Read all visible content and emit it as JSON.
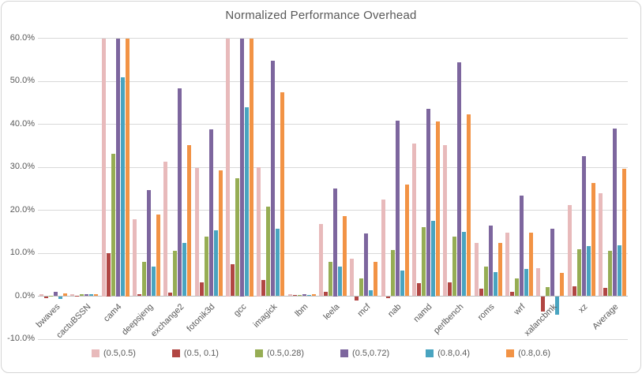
{
  "window": {
    "background": "#FFFFFF",
    "frame_border": "#D4D4D4"
  },
  "colors": {
    "gridline": "#D9D9D9",
    "zero_axis": "#BFBFBF",
    "text": "#595959"
  },
  "chart_data": {
    "type": "bar",
    "title": "Normalized Performance Overhead",
    "categories": [
      "bwaves",
      "cactuBSSN",
      "cam4",
      "deepsjeng",
      "exchange2",
      "fotonik3d",
      "gcc",
      "imagick",
      "lbm",
      "leela",
      "mcf",
      "nab",
      "namd",
      "perlbench",
      "roms",
      "wrf",
      "xalancbmk",
      "xz",
      "Average"
    ],
    "series": [
      {
        "name": "(0.5,0.5)",
        "color": "#E8BABB",
        "values": [
          0.5,
          0.4,
          60.0,
          17.8,
          31.3,
          29.8,
          60.0,
          30.0,
          0.4,
          16.8,
          8.8,
          22.5,
          35.5,
          35.2,
          12.4,
          14.7,
          6.6,
          21.2,
          24.0
        ]
      },
      {
        "name": "(0.5, 0.1)",
        "color": "#B14643",
        "values": [
          -0.5,
          0.1,
          10.0,
          0.5,
          0.8,
          3.2,
          7.4,
          3.8,
          0.3,
          1.0,
          -1.1,
          -0.5,
          3.1,
          3.3,
          1.7,
          1.1,
          -3.6,
          2.3,
          1.9
        ]
      },
      {
        "name": "(0.5,0.28)",
        "color": "#96AD54",
        "values": [
          0.1,
          0.4,
          33.1,
          7.9,
          10.5,
          13.9,
          27.4,
          20.9,
          0.3,
          7.9,
          4.1,
          10.7,
          16.0,
          13.8,
          6.8,
          4.2,
          2.1,
          10.9,
          10.6
        ]
      },
      {
        "name": "(0.5,0.72)",
        "color": "#7D669E",
        "values": [
          1.0,
          0.5,
          60.0,
          24.7,
          48.3,
          38.8,
          60.0,
          54.7,
          0.4,
          25.0,
          14.6,
          40.8,
          43.5,
          54.4,
          16.4,
          23.4,
          15.7,
          32.6,
          39.0
        ]
      },
      {
        "name": "(0.8,0.4)",
        "color": "#49A4C0",
        "values": [
          -0.6,
          0.5,
          51.0,
          6.9,
          12.3,
          15.3,
          44.0,
          15.6,
          0.3,
          6.8,
          1.4,
          5.9,
          17.5,
          14.9,
          5.6,
          6.4,
          -4.3,
          11.7,
          11.9
        ]
      },
      {
        "name": "(0.8,0.6)",
        "color": "#F29345",
        "values": [
          0.7,
          0.4,
          60.0,
          18.9,
          35.1,
          29.2,
          60.0,
          47.4,
          0.4,
          18.7,
          8.0,
          26.0,
          40.7,
          42.3,
          12.3,
          14.8,
          5.4,
          26.3,
          29.6
        ]
      }
    ],
    "ylim": [
      -10,
      60
    ],
    "y_tick_step": 10,
    "y_ticks": [
      "60.0%",
      "50.0%",
      "40.0%",
      "30.0%",
      "20.0%",
      "10.0%",
      "0.0%",
      "-10.0%"
    ],
    "grid": true,
    "legend_position": "bottom",
    "note": "cam4 and gcc bars for series (0.5,0.5), (0.5,0.72), (0.8,0.6) are clipped at the 60% axis maximum"
  }
}
